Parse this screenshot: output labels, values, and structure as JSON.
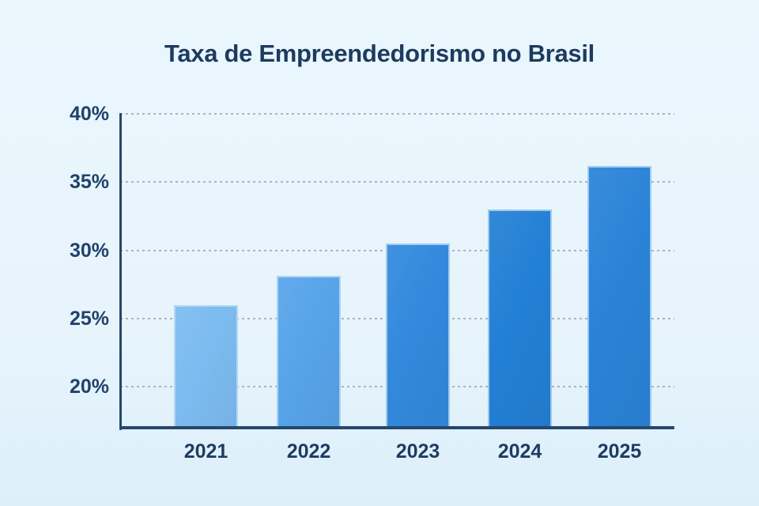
{
  "title": "Taxa de Empreendedorismo no Brasil",
  "chart_data": {
    "type": "bar",
    "title": "Taxa de Empreendedorismo no Brasil",
    "categories": [
      "2021",
      "2022",
      "2023",
      "2024",
      "2025"
    ],
    "values": [
      26,
      28.1,
      30.5,
      33,
      36.2
    ],
    "unit": "%",
    "xlabel": "",
    "ylabel": "",
    "y_ticks": [
      {
        "label": "40%",
        "value": 40
      },
      {
        "label": "35%",
        "value": 35
      },
      {
        "label": "30%",
        "value": 30
      },
      {
        "label": "25%",
        "value": 25
      },
      {
        "label": "20%",
        "value": 20
      }
    ],
    "ylim": [
      17,
      40
    ],
    "grid": "horizontal-dashed",
    "legend": "none",
    "bar_colors": [
      "#7cbbf0",
      "#57a4e9",
      "#3389dd",
      "#2380d5",
      "#2a83d8"
    ]
  },
  "colors": {
    "background": "#e9f6fd",
    "title_text": "#1d3b5e",
    "axis": "#26476c",
    "gridline": "#9fa9b2",
    "tick_text": "#21426a"
  }
}
